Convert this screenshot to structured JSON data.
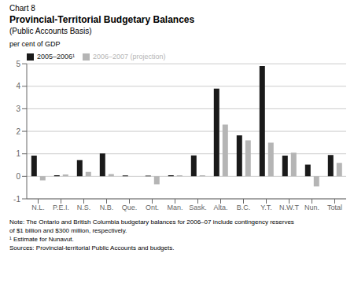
{
  "chart_data": {
    "type": "bar",
    "chart_label": "Chart 8",
    "title": "Provincial-Territorial Budgetary Balances",
    "subtitle": "(Public Accounts Basis)",
    "y_label": "per cent of GDP",
    "categories": [
      "N.L.",
      "P.E.I.",
      "N.S.",
      "N.B.",
      "Que.",
      "Ont.",
      "Man.",
      "Sask.",
      "Alta.",
      "B.C.",
      "Y.T.",
      "N.W.T",
      "Nun.",
      "Total"
    ],
    "series": [
      {
        "name": "2005–2006¹",
        "color": "#1a1a1a",
        "values": [
          0.92,
          0.05,
          0.72,
          1.02,
          0.04,
          0.03,
          0.05,
          0.93,
          3.9,
          1.82,
          4.9,
          0.92,
          0.52,
          0.95
        ]
      },
      {
        "name": "2006–2007 (projection)",
        "color": "#b5b5b5",
        "values": [
          -0.18,
          0.08,
          0.2,
          0.1,
          0.0,
          -0.35,
          0.05,
          0.05,
          2.3,
          1.6,
          1.5,
          1.05,
          -0.45,
          0.6
        ]
      }
    ],
    "ylim": [
      -1,
      5
    ],
    "yticks": [
      -1,
      0,
      1,
      2,
      3,
      4,
      5
    ],
    "grid": true,
    "legend": "upper left",
    "notes": [
      "Note: The Ontario and British Columbia budgetary balances for 2006–07 include contingency reserves",
      "of $1 billion and $300 million, respectively.",
      "¹ Estimate for Nunavut.",
      "Sources: Provincial-territorial Public Accounts and budgets."
    ]
  }
}
